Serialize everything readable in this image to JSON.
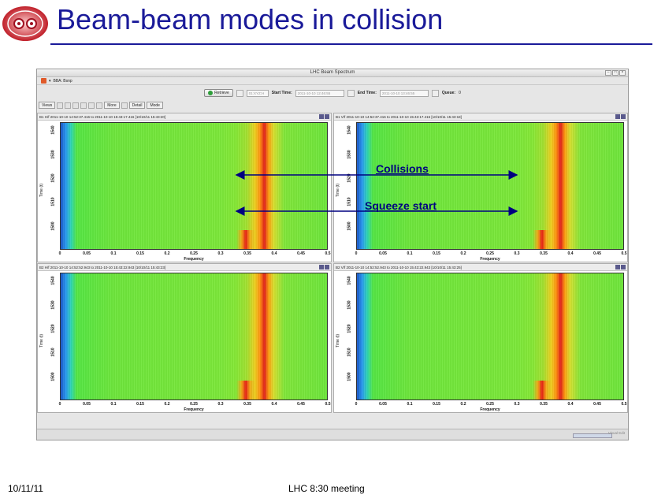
{
  "slide": {
    "title": "Beam-beam modes in collision",
    "footer_date": "10/11/11",
    "footer_meeting": "LHC 8:30 meeting",
    "title_color": "#1a1a99"
  },
  "app": {
    "window_title": "LHC Beam Spectrum",
    "menu_label": "BBA: Bsnp",
    "toolbar": {
      "retrieve_label": "Retrieve",
      "dropdown_value": "01:XYZ:H",
      "start_label": "Start Time:",
      "start_value": "2011-10-10 12:46:55",
      "end_label": "End Time:",
      "end_value": "2011-10-10 13:46:55",
      "queue_label": "Queue:",
      "queue_value": "0"
    },
    "viewbar": {
      "views_label": "Views",
      "more_label": "More",
      "detail_label": "Detail",
      "mode_label": "Mode"
    },
    "status_text": "Visual Edit"
  },
  "panels": [
    {
      "header": "B1 H/f 2011-10-10 14:52:37.416 to 2011-10-10 15:43:17.416  [10/10/11 15:43:20]"
    },
    {
      "header": "B1 V/f 2011-10-10 14:52:37.416 to 2011-10-10 15:43:17.416  [10/10/11 15:43:18]"
    },
    {
      "header": "B2 H/f 2011-10-10 14:52:52.943 to 2011-10-10 15:43:22.943  [10/10/11 15:43:23]"
    },
    {
      "header": "B2 V/f 2011-10-10 14:52:52.943 to 2011-10-10 15:43:22.943  [10/10/11 15:43:25]"
    }
  ],
  "chart_data": {
    "type": "heatmap",
    "xlabel": "Frequency",
    "ylabel": "Time (t)",
    "x_ticks": [
      "0",
      "0.05",
      "0.1",
      "0.15",
      "0.2",
      "0.25",
      "0.3",
      "0.35",
      "0.4",
      "0.45",
      "0.5"
    ],
    "y_ticks": [
      "1500",
      "1510",
      "1520",
      "1530",
      "1540"
    ],
    "xlim": [
      0,
      0.5
    ],
    "colormap": [
      "#1a55c8",
      "#2fd8b0",
      "#6ee63c",
      "#f0d020",
      "#ff8a10",
      "#e0201a"
    ]
  },
  "annotations": {
    "collisions": "Collisions",
    "squeeze_start": "Squeeze start",
    "arrow_color": "#000080"
  }
}
